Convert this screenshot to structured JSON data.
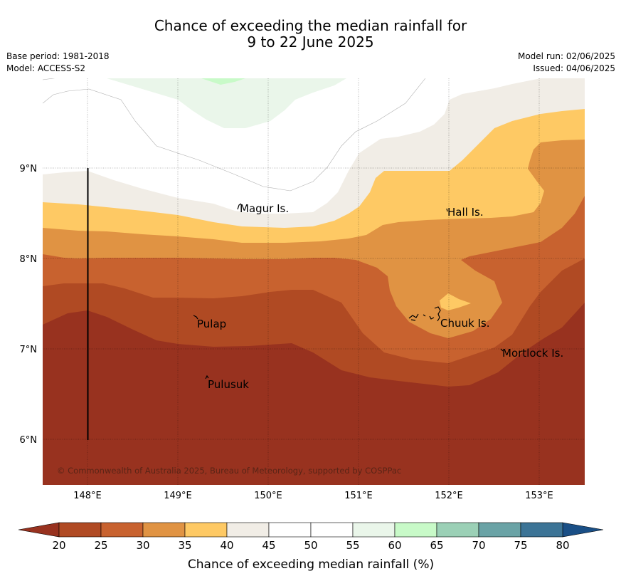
{
  "header": {
    "title_line1": "Chance of exceeding the median rainfall for",
    "title_line2": "9 to 22 June 2025",
    "base_period": "Base period: 1981-2018",
    "model": "Model: ACCESS-S2",
    "model_run": "Model run: 02/06/2025",
    "issued": "Issued: 04/06/2025"
  },
  "map": {
    "lat_ticks": [
      "9°N",
      "8°N",
      "7°N",
      "6°N"
    ],
    "lon_ticks": [
      "148°E",
      "149°E",
      "150°E",
      "151°E",
      "152°E",
      "153°E"
    ],
    "places": {
      "magur": "Magur Is.",
      "hall": "Hall Is.",
      "pulap": "Pulap",
      "chuuk": "Chuuk Is.",
      "mortlock": "Mortlock Is.",
      "pulusuk": "Pulusuk"
    },
    "copyright": "© Commonwealth of Australia 2025, Bureau of Meteorology, supported by COSPPac"
  },
  "colorbar": {
    "label": "Chance of exceeding median rainfall (%)",
    "ticks": [
      "20",
      "25",
      "30",
      "35",
      "40",
      "45",
      "50",
      "55",
      "60",
      "65",
      "70",
      "75",
      "80"
    ],
    "colors": [
      "#b04a23",
      "#c8622f",
      "#e09343",
      "#fec964",
      "#f1ede6",
      "#ffffff",
      "#ffffff",
      "#eaf6ea",
      "#c8fac8",
      "#9bd0b6",
      "#6aa3a6",
      "#3c7496"
    ],
    "under_color": "#98321f",
    "over_color": "#1a4f86"
  }
}
